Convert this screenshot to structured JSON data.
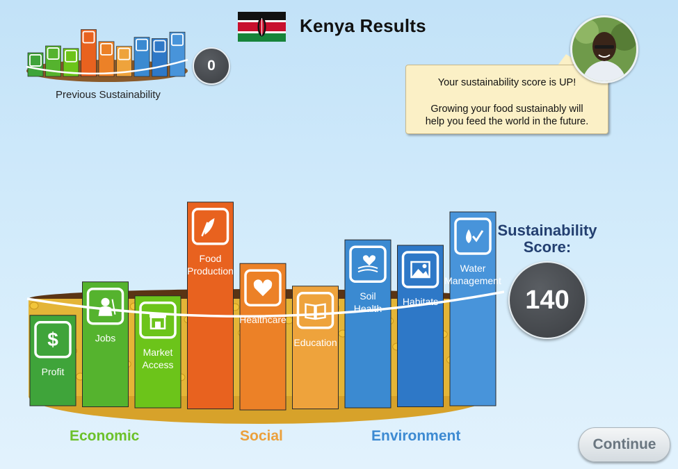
{
  "header": {
    "title": "Kenya Results",
    "flag_icon": "kenya-flag-icon"
  },
  "previous": {
    "label": "Previous Sustainability",
    "score": "0"
  },
  "speech": {
    "line1": "Your sustainability score is UP!",
    "line2": "Growing your food sustainably will",
    "line3": "help you feed the world in the future."
  },
  "score": {
    "title_line1": "Sustainability",
    "title_line2": "Score:",
    "value": "140"
  },
  "categories": {
    "economic": "Economic",
    "social": "Social",
    "environment": "Environment"
  },
  "colors": {
    "economic": "#6cc12a",
    "social": "#eba03c",
    "environment": "#3d8ad2"
  },
  "bars": [
    {
      "label": [
        "Profit"
      ],
      "level": 0.42,
      "color": "#3fa43a",
      "icon": "dollar-icon"
    },
    {
      "label": [
        "Jobs"
      ],
      "level": 0.58,
      "color": "#55b32e",
      "icon": "worker-icon"
    },
    {
      "label": [
        "Market",
        "Access"
      ],
      "level": 0.52,
      "color": "#6cc41a",
      "icon": "market-stall-icon"
    },
    {
      "label": [
        "Food",
        "Production"
      ],
      "level": 0.96,
      "color": "#e8621f",
      "icon": "food-leaf-icon"
    },
    {
      "label": [
        "Healthcare"
      ],
      "level": 0.68,
      "color": "#ec8127",
      "icon": "heart-icon"
    },
    {
      "label": [
        "Education"
      ],
      "level": 0.57,
      "color": "#eea33c",
      "icon": "book-icon"
    },
    {
      "label": [
        "Soil",
        "Health"
      ],
      "level": 0.78,
      "color": "#3b8ad1",
      "icon": "soil-heart-icon"
    },
    {
      "label": [
        "Habitats"
      ],
      "level": 0.75,
      "color": "#2e78c7",
      "icon": "landscape-icon"
    },
    {
      "label": [
        "Water",
        "Management"
      ],
      "level": 0.9,
      "color": "#4894da",
      "icon": "water-drop-check-icon"
    }
  ],
  "continue_label": "Continue"
}
